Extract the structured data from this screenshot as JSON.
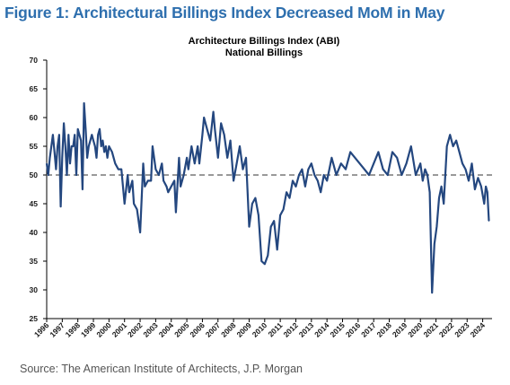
{
  "figure_title": "Figure 1: Architectural Billings Index Decreased MoM in May",
  "source_text": "Source: The American Institute of Architects, J.P. Morgan",
  "chart_data": {
    "type": "line",
    "title": "Architecture Billings Index (ABI)",
    "subtitle": "National Billings",
    "xlabel": "",
    "ylabel": "",
    "ylim": [
      25,
      70
    ],
    "yticks": [
      25,
      30,
      35,
      40,
      45,
      50,
      55,
      60,
      65,
      70
    ],
    "xlim": [
      1996.0,
      2024.6
    ],
    "xticks": [
      "1996",
      "1997",
      "1998",
      "1999",
      "2000",
      "2001",
      "2002",
      "2003",
      "2004",
      "2005",
      "2006",
      "2007",
      "2008",
      "2009",
      "2010",
      "2011",
      "2012",
      "2013",
      "2014",
      "2015",
      "2016",
      "2017",
      "2018",
      "2019",
      "2020",
      "2021",
      "2022",
      "2023",
      "2024"
    ],
    "reference_line": {
      "y": 50,
      "style": "dashed",
      "color": "#999999"
    },
    "grid": false,
    "legend": "none",
    "series": [
      {
        "color": "#24477f",
        "x": [
          1996.0,
          1996.1,
          1996.2,
          1996.3,
          1996.4,
          1996.5,
          1996.6,
          1996.7,
          1996.8,
          1996.9,
          1997.0,
          1997.1,
          1997.2,
          1997.3,
          1997.4,
          1997.5,
          1997.6,
          1997.7,
          1997.8,
          1997.9,
          1998.0,
          1998.1,
          1998.2,
          1998.3,
          1998.4,
          1998.5,
          1998.6,
          1998.7,
          1998.8,
          1998.9,
          1999.0,
          1999.1,
          1999.2,
          1999.3,
          1999.4,
          1999.5,
          1999.6,
          1999.7,
          1999.8,
          1999.9,
          2000.0,
          2000.2,
          2000.4,
          2000.6,
          2000.8,
          2001.0,
          2001.2,
          2001.3,
          2001.5,
          2001.6,
          2001.8,
          2002.0,
          2002.1,
          2002.2,
          2002.3,
          2002.5,
          2002.7,
          2002.8,
          2003.0,
          2003.2,
          2003.4,
          2003.5,
          2003.7,
          2003.8,
          2004.0,
          2004.2,
          2004.3,
          2004.5,
          2004.6,
          2004.8,
          2005.0,
          2005.1,
          2005.3,
          2005.5,
          2005.7,
          2005.8,
          2006.0,
          2006.1,
          2006.3,
          2006.5,
          2006.7,
          2006.8,
          2007.0,
          2007.2,
          2007.4,
          2007.6,
          2007.8,
          2008.0,
          2008.2,
          2008.4,
          2008.6,
          2008.8,
          2009.0,
          2009.2,
          2009.4,
          2009.6,
          2009.8,
          2010.0,
          2010.2,
          2010.4,
          2010.6,
          2010.8,
          2011.0,
          2011.2,
          2011.4,
          2011.6,
          2011.8,
          2012.0,
          2012.2,
          2012.4,
          2012.6,
          2012.8,
          2013.0,
          2013.2,
          2013.4,
          2013.6,
          2013.8,
          2014.0,
          2014.3,
          2014.6,
          2014.9,
          2015.2,
          2015.5,
          2015.8,
          2016.1,
          2016.4,
          2016.7,
          2017.0,
          2017.3,
          2017.6,
          2017.9,
          2018.2,
          2018.5,
          2018.8,
          2019.1,
          2019.4,
          2019.7,
          2020.0,
          2020.15,
          2020.3,
          2020.45,
          2020.6,
          2020.75,
          2020.9,
          2021.05,
          2021.2,
          2021.35,
          2021.5,
          2021.7,
          2021.9,
          2022.1,
          2022.3,
          2022.5,
          2022.7,
          2022.9,
          2023.1,
          2023.3,
          2023.5,
          2023.7,
          2023.9,
          2024.1,
          2024.2,
          2024.3,
          2024.4
        ],
        "y": [
          52,
          50,
          53,
          55,
          57,
          54,
          51,
          55,
          57,
          44.5,
          53,
          59,
          55,
          50,
          57,
          52,
          55,
          55,
          57,
          50,
          58,
          57,
          56,
          47.5,
          62.5,
          58,
          53,
          55,
          56,
          57,
          56,
          55,
          53,
          57,
          58,
          55,
          56,
          54,
          55,
          53,
          55,
          54,
          52,
          51,
          51,
          45,
          50,
          47,
          49,
          45,
          44,
          40,
          46,
          52,
          48,
          49,
          49,
          55,
          51,
          50,
          52,
          49,
          48,
          47,
          48,
          49,
          43.5,
          53,
          48,
          50,
          53,
          51,
          55,
          52,
          55,
          52,
          57,
          60,
          58,
          56,
          61,
          58,
          53,
          59,
          57,
          53,
          56,
          49,
          52,
          55,
          51,
          53,
          41,
          45,
          46,
          43,
          35,
          34.5,
          36,
          41,
          42,
          37,
          43,
          44,
          47,
          46,
          49,
          48,
          50,
          51,
          48,
          51,
          52,
          50,
          49,
          47,
          50,
          49,
          53,
          50,
          52,
          51,
          54,
          53,
          52,
          51,
          50,
          52,
          54,
          51,
          50,
          54,
          53,
          50,
          52,
          55,
          50,
          52,
          49,
          51,
          50,
          47,
          29.5,
          38,
          41,
          46,
          48,
          45,
          55,
          57,
          55,
          56,
          54,
          52,
          51,
          49,
          52,
          47.5,
          49.5,
          48,
          45,
          48,
          47,
          42
        ]
      }
    ]
  }
}
